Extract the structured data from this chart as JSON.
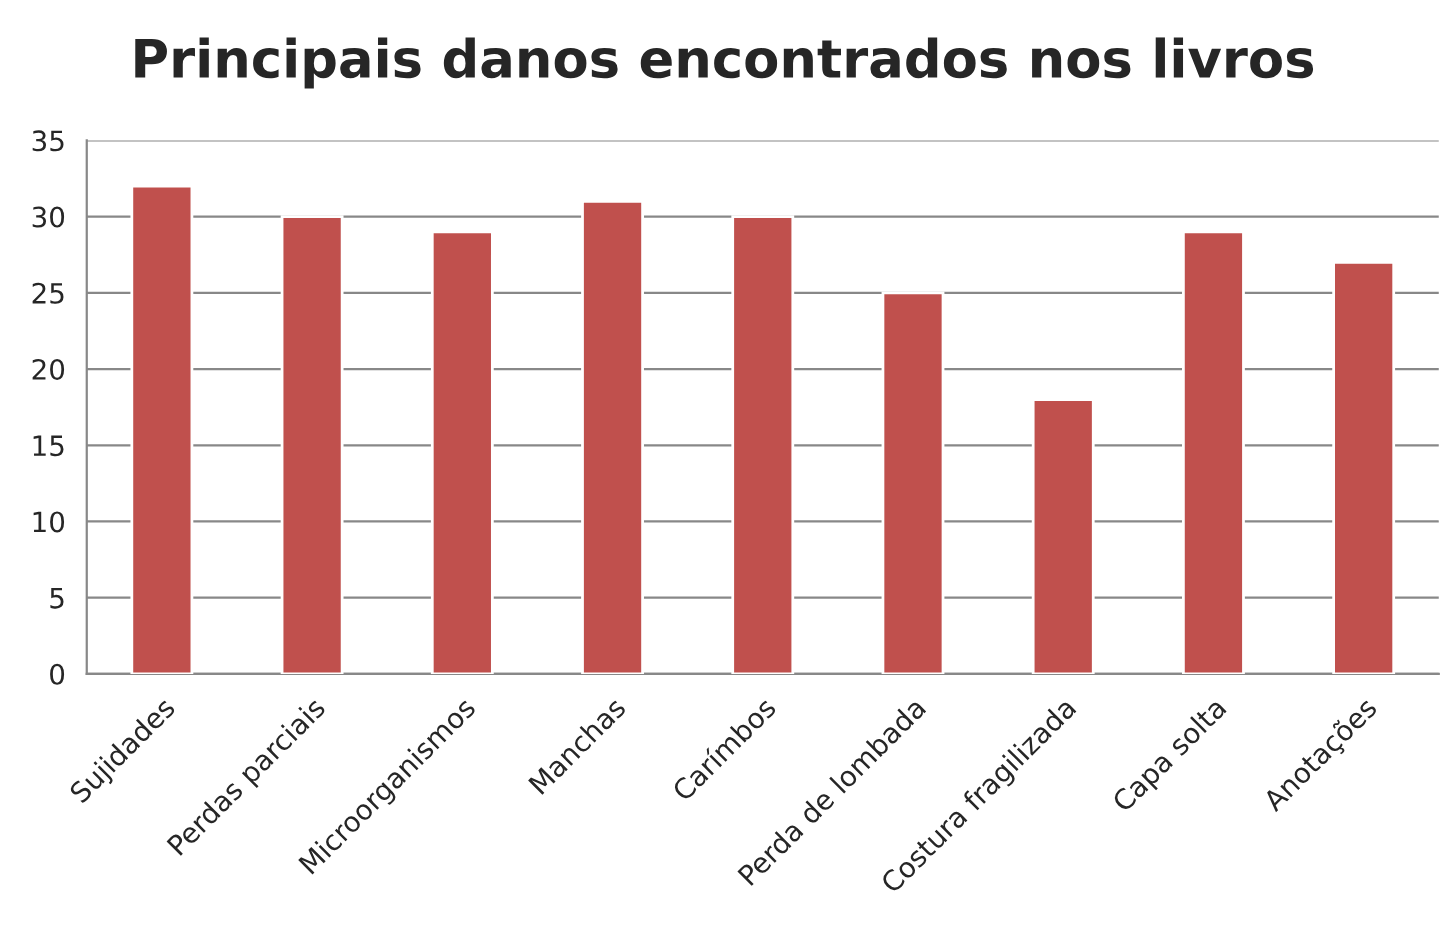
{
  "chart_data": {
    "type": "bar",
    "title": "Principais danos encontrados nos livros",
    "categories": [
      "Sujidades",
      "Perdas parciais",
      "Microorganismos",
      "Manchas",
      "Carímbos",
      "Perda de lombada",
      "Costura fragilizada",
      "Capa solta",
      "Anotações"
    ],
    "values": [
      32,
      30,
      29,
      31,
      30,
      25,
      18,
      29,
      27
    ],
    "color": "#c0504d",
    "ylim": [
      0,
      35
    ],
    "yticks": [
      0,
      5,
      10,
      15,
      20,
      25,
      30,
      35
    ],
    "grid": "y",
    "legend": false
  }
}
